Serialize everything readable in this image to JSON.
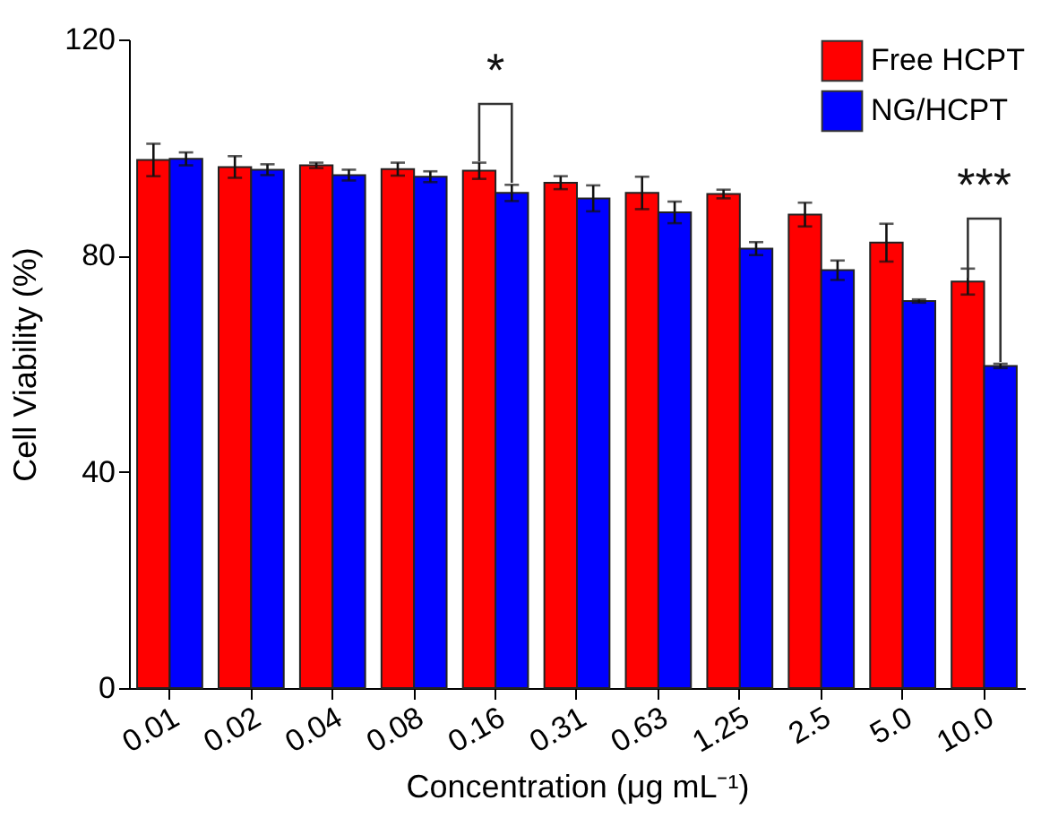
{
  "chart_data": {
    "type": "bar",
    "xlabel": "Concentration (μg mL⁻¹)",
    "ylabel": "Cell Viability (%)",
    "categories": [
      "0.01",
      "0.02",
      "0.04",
      "0.08",
      "0.16",
      "0.31",
      "0.63",
      "1.25",
      "2.5",
      "5.0",
      "10.0"
    ],
    "series": [
      {
        "name": "Free HCPT",
        "color": "#ff0000",
        "values": [
          97.7,
          96.4,
          96.7,
          96.0,
          95.7,
          93.5,
          91.6,
          91.4,
          87.6,
          82.4,
          75.2
        ],
        "errors": [
          3,
          2,
          0.5,
          1.2,
          1.5,
          1.2,
          3,
          0.8,
          2.2,
          3.5,
          2.4
        ]
      },
      {
        "name": "NG/HCPT",
        "color": "#0000ff",
        "values": [
          97.9,
          95.9,
          94.9,
          94.6,
          91.6,
          90.6,
          88.0,
          81.3,
          77.3,
          71.6,
          59.6
        ],
        "errors": [
          1.2,
          1,
          1,
          1,
          1.5,
          2.4,
          2,
          1.2,
          1.8,
          0.3,
          0.4
        ]
      }
    ],
    "ylim": [
      0,
      120
    ],
    "yticks": [
      0,
      40,
      80,
      120
    ],
    "grid": false,
    "legend": "top right",
    "annotations": [
      "*",
      "***"
    ]
  }
}
